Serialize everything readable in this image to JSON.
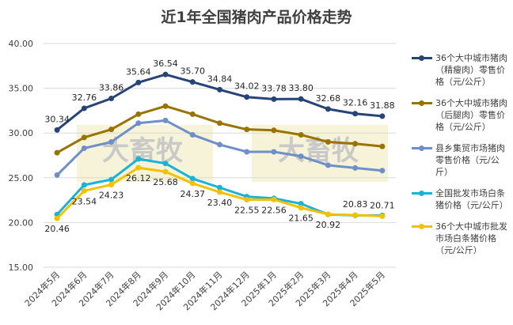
{
  "watermark": "大畜牧",
  "chart_data": {
    "type": "line",
    "title": "近1年全国猪肉产品价格走势",
    "categories": [
      "2024年5月",
      "2024年6月",
      "2024年7月",
      "2024年8月",
      "2024年9月",
      "2024年10月",
      "2024年11月",
      "2024年12月",
      "2025年1月",
      "2025年2月",
      "2025年3月",
      "2025年4月",
      "2025年5月"
    ],
    "ylim": [
      15,
      40
    ],
    "yticks": [
      {
        "value": 15,
        "label": "15.00"
      },
      {
        "value": 20,
        "label": "20.00"
      },
      {
        "value": 25,
        "label": "25.00"
      },
      {
        "value": 30,
        "label": "30.00"
      },
      {
        "value": 35,
        "label": "35.00"
      },
      {
        "value": 40,
        "label": "40.00"
      }
    ],
    "grid": true,
    "legend": "right",
    "series": [
      {
        "name": "36个大中城市猪肉（精瘦肉）零售价格（元/公斤）",
        "color": "#264478",
        "values": [
          30.34,
          32.76,
          33.86,
          35.64,
          36.54,
          35.7,
          34.84,
          34.02,
          33.78,
          33.8,
          32.68,
          32.16,
          31.88
        ],
        "value_labels": [
          "30.34",
          "32.76",
          "33.86",
          "35.64",
          "36.54",
          "35.70",
          "34.84",
          "34.02",
          "33.78",
          "33.80",
          "32.68",
          "32.16",
          "31.88"
        ]
      },
      {
        "name": "36个大中城市猪肉（后腿肉）零售价格（元/公斤）",
        "color": "#997300",
        "values": [
          27.8,
          29.5,
          30.4,
          32.1,
          33.0,
          32.1,
          31.1,
          30.4,
          30.3,
          29.8,
          29.0,
          28.8,
          28.5
        ]
      },
      {
        "name": "县乡集贸市场猪肉零售价格（元/公斤）",
        "color": "#6f8fc8",
        "values": [
          25.3,
          28.3,
          29.0,
          31.1,
          31.4,
          29.8,
          28.7,
          27.9,
          27.9,
          27.4,
          26.4,
          26.1,
          25.8
        ]
      },
      {
        "name": "全国批发市场白条猪价格（元/公斤）",
        "color": "#1ab2d6",
        "values": [
          20.9,
          24.2,
          24.8,
          27.1,
          26.6,
          24.9,
          23.9,
          22.9,
          22.7,
          22.1,
          20.9,
          20.8,
          20.8
        ]
      },
      {
        "name": "36个大中城市批发市场白条猪价格（元/公斤）",
        "color": "#f2c200",
        "values": [
          20.46,
          23.54,
          24.23,
          26.12,
          25.68,
          24.37,
          23.4,
          22.55,
          22.56,
          21.65,
          20.92,
          20.83,
          20.71
        ],
        "value_labels": [
          "20.46",
          "23.54",
          "24.23",
          "26.12",
          "25.68",
          "24.37",
          "23.40",
          "22.55",
          "22.56",
          "21.65",
          "20.92",
          "20.83",
          "20.71"
        ]
      }
    ]
  }
}
